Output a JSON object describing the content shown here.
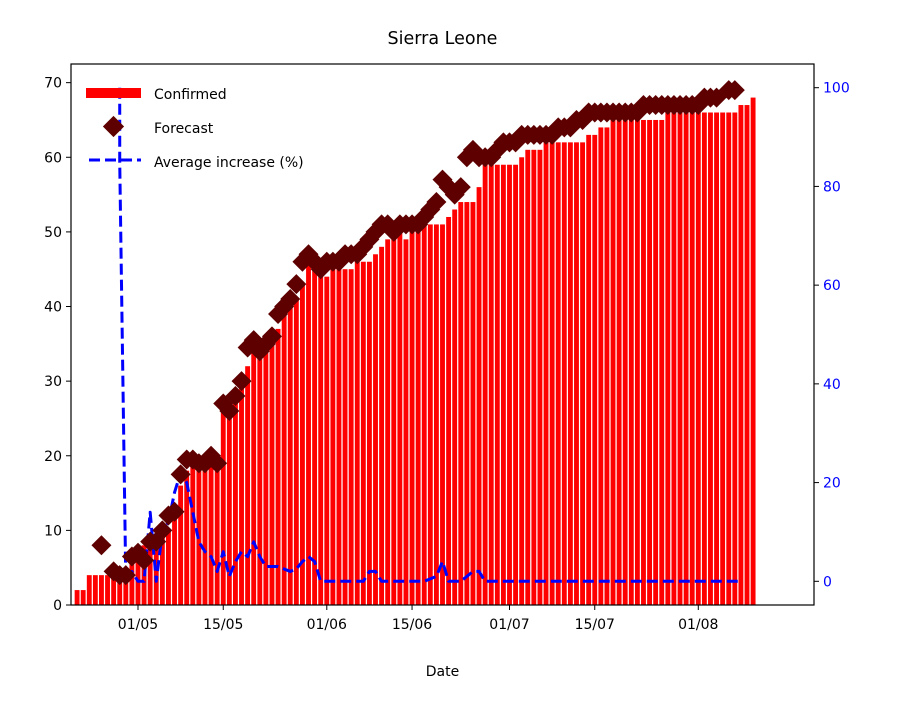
{
  "chart_data": {
    "type": "bar",
    "title": "Sierra Leone",
    "xlabel": "Date",
    "ylabel": "",
    "ylabel_right": "",
    "ylim": [
      0,
      72.5
    ],
    "ylim_right": [
      -4.8,
      104.8
    ],
    "yticks": [
      0,
      10,
      20,
      30,
      40,
      50,
      60,
      70
    ],
    "yticks_right": [
      0,
      20,
      40,
      60,
      80,
      100
    ],
    "xlim": [
      "2020-04-20",
      "2020-08-20"
    ],
    "xticks": [
      {
        "date": "2020-05-01",
        "label": "01/05"
      },
      {
        "date": "2020-05-15",
        "label": "15/05"
      },
      {
        "date": "2020-06-01",
        "label": "01/06"
      },
      {
        "date": "2020-06-15",
        "label": "15/06"
      },
      {
        "date": "2020-07-01",
        "label": "01/07"
      },
      {
        "date": "2020-07-15",
        "label": "15/07"
      },
      {
        "date": "2020-08-01",
        "label": "01/08"
      }
    ],
    "legend_position": "upper-left",
    "grid": false,
    "colors": {
      "confirmed": "#ff0000",
      "forecast": "#5e0000",
      "average": "#0000ff",
      "right_axis": "#0000ff"
    },
    "series": [
      {
        "name": "Confirmed",
        "kind": "bar",
        "axis": "left",
        "points": [
          [
            "2020-04-21",
            2
          ],
          [
            "2020-04-22",
            2
          ],
          [
            "2020-04-23",
            4
          ],
          [
            "2020-04-24",
            4
          ],
          [
            "2020-04-25",
            4
          ],
          [
            "2020-04-26",
            4
          ],
          [
            "2020-04-27",
            4
          ],
          [
            "2020-04-28",
            4
          ],
          [
            "2020-04-29",
            4
          ],
          [
            "2020-04-30",
            6
          ],
          [
            "2020-05-01",
            7
          ],
          [
            "2020-05-02",
            8
          ],
          [
            "2020-05-03",
            8
          ],
          [
            "2020-05-04",
            8
          ],
          [
            "2020-05-05",
            9
          ],
          [
            "2020-05-06",
            10
          ],
          [
            "2020-05-07",
            12
          ],
          [
            "2020-05-08",
            16
          ],
          [
            "2020-05-09",
            18
          ],
          [
            "2020-05-10",
            19
          ],
          [
            "2020-05-11",
            19
          ],
          [
            "2020-05-12",
            19
          ],
          [
            "2020-05-13",
            19
          ],
          [
            "2020-05-14",
            19
          ],
          [
            "2020-05-15",
            26
          ],
          [
            "2020-05-16",
            26
          ],
          [
            "2020-05-17",
            28
          ],
          [
            "2020-05-18",
            29
          ],
          [
            "2020-05-19",
            32
          ],
          [
            "2020-05-20",
            34
          ],
          [
            "2020-05-21",
            34
          ],
          [
            "2020-05-22",
            34
          ],
          [
            "2020-05-23",
            35
          ],
          [
            "2020-05-24",
            37
          ],
          [
            "2020-05-25",
            39
          ],
          [
            "2020-05-26",
            40
          ],
          [
            "2020-05-27",
            41
          ],
          [
            "2020-05-28",
            43
          ],
          [
            "2020-05-29",
            46
          ],
          [
            "2020-05-30",
            46
          ],
          [
            "2020-05-31",
            45
          ],
          [
            "2020-06-01",
            44
          ],
          [
            "2020-06-02",
            45
          ],
          [
            "2020-06-03",
            45
          ],
          [
            "2020-06-04",
            45
          ],
          [
            "2020-06-05",
            45
          ],
          [
            "2020-06-06",
            46
          ],
          [
            "2020-06-07",
            46
          ],
          [
            "2020-06-08",
            46
          ],
          [
            "2020-06-09",
            47
          ],
          [
            "2020-06-10",
            48
          ],
          [
            "2020-06-11",
            49
          ],
          [
            "2020-06-12",
            50
          ],
          [
            "2020-06-13",
            50
          ],
          [
            "2020-06-14",
            49
          ],
          [
            "2020-06-15",
            50
          ],
          [
            "2020-06-16",
            51
          ],
          [
            "2020-06-17",
            51
          ],
          [
            "2020-06-18",
            51
          ],
          [
            "2020-06-19",
            51
          ],
          [
            "2020-06-20",
            51
          ],
          [
            "2020-06-21",
            52
          ],
          [
            "2020-06-22",
            53
          ],
          [
            "2020-06-23",
            54
          ],
          [
            "2020-06-24",
            54
          ],
          [
            "2020-06-25",
            54
          ],
          [
            "2020-06-26",
            56
          ],
          [
            "2020-06-27",
            59
          ],
          [
            "2020-06-28",
            59
          ],
          [
            "2020-06-29",
            59
          ],
          [
            "2020-06-30",
            59
          ],
          [
            "2020-07-01",
            59
          ],
          [
            "2020-07-02",
            59
          ],
          [
            "2020-07-03",
            60
          ],
          [
            "2020-07-04",
            61
          ],
          [
            "2020-07-05",
            61
          ],
          [
            "2020-07-06",
            61
          ],
          [
            "2020-07-07",
            62
          ],
          [
            "2020-07-08",
            62
          ],
          [
            "2020-07-09",
            62
          ],
          [
            "2020-07-10",
            62
          ],
          [
            "2020-07-11",
            62
          ],
          [
            "2020-07-12",
            62
          ],
          [
            "2020-07-13",
            62
          ],
          [
            "2020-07-14",
            63
          ],
          [
            "2020-07-15",
            63
          ],
          [
            "2020-07-16",
            64
          ],
          [
            "2020-07-17",
            64
          ],
          [
            "2020-07-18",
            65
          ],
          [
            "2020-07-19",
            65
          ],
          [
            "2020-07-20",
            65
          ],
          [
            "2020-07-21",
            65
          ],
          [
            "2020-07-22",
            65
          ],
          [
            "2020-07-23",
            65
          ],
          [
            "2020-07-24",
            65
          ],
          [
            "2020-07-25",
            65
          ],
          [
            "2020-07-26",
            65
          ],
          [
            "2020-07-27",
            66
          ],
          [
            "2020-07-28",
            66
          ],
          [
            "2020-07-29",
            66
          ],
          [
            "2020-07-30",
            66
          ],
          [
            "2020-07-31",
            66
          ],
          [
            "2020-08-01",
            66
          ],
          [
            "2020-08-02",
            66
          ],
          [
            "2020-08-03",
            66
          ],
          [
            "2020-08-04",
            66
          ],
          [
            "2020-08-05",
            66
          ],
          [
            "2020-08-06",
            66
          ],
          [
            "2020-08-07",
            66
          ],
          [
            "2020-08-08",
            67
          ],
          [
            "2020-08-09",
            67
          ],
          [
            "2020-08-10",
            68
          ]
        ]
      },
      {
        "name": "Forecast",
        "kind": "scatter",
        "axis": "left",
        "points": [
          [
            "2020-04-25",
            8
          ],
          [
            "2020-04-27",
            4.5
          ],
          [
            "2020-04-28",
            4
          ],
          [
            "2020-04-29",
            4
          ],
          [
            "2020-04-30",
            6.5
          ],
          [
            "2020-05-01",
            7
          ],
          [
            "2020-05-02",
            6
          ],
          [
            "2020-05-03",
            8.5
          ],
          [
            "2020-05-04",
            8.5
          ],
          [
            "2020-05-05",
            10
          ],
          [
            "2020-05-06",
            12
          ],
          [
            "2020-05-07",
            12.5
          ],
          [
            "2020-05-08",
            17.5
          ],
          [
            "2020-05-09",
            19.5
          ],
          [
            "2020-05-10",
            19.5
          ],
          [
            "2020-05-11",
            19
          ],
          [
            "2020-05-12",
            19
          ],
          [
            "2020-05-13",
            20
          ],
          [
            "2020-05-14",
            19
          ],
          [
            "2020-05-15",
            27
          ],
          [
            "2020-05-16",
            26
          ],
          [
            "2020-05-17",
            28
          ],
          [
            "2020-05-18",
            30
          ],
          [
            "2020-05-19",
            34.5
          ],
          [
            "2020-05-20",
            35.5
          ],
          [
            "2020-05-21",
            34
          ],
          [
            "2020-05-22",
            35
          ],
          [
            "2020-05-23",
            36
          ],
          [
            "2020-05-24",
            39
          ],
          [
            "2020-05-25",
            40
          ],
          [
            "2020-05-26",
            41
          ],
          [
            "2020-05-27",
            43
          ],
          [
            "2020-05-28",
            46
          ],
          [
            "2020-05-29",
            47
          ],
          [
            "2020-05-30",
            46
          ],
          [
            "2020-05-31",
            45
          ],
          [
            "2020-06-01",
            46
          ],
          [
            "2020-06-02",
            46
          ],
          [
            "2020-06-03",
            46
          ],
          [
            "2020-06-04",
            47
          ],
          [
            "2020-06-05",
            47
          ],
          [
            "2020-06-06",
            47
          ],
          [
            "2020-06-07",
            48
          ],
          [
            "2020-06-08",
            49
          ],
          [
            "2020-06-09",
            50
          ],
          [
            "2020-06-10",
            51
          ],
          [
            "2020-06-11",
            51
          ],
          [
            "2020-06-12",
            50
          ],
          [
            "2020-06-13",
            51
          ],
          [
            "2020-06-14",
            51
          ],
          [
            "2020-06-15",
            51
          ],
          [
            "2020-06-16",
            51
          ],
          [
            "2020-06-17",
            52
          ],
          [
            "2020-06-18",
            53
          ],
          [
            "2020-06-19",
            54
          ],
          [
            "2020-06-20",
            57
          ],
          [
            "2020-06-21",
            56
          ],
          [
            "2020-06-22",
            55
          ],
          [
            "2020-06-23",
            56
          ],
          [
            "2020-06-24",
            60
          ],
          [
            "2020-06-25",
            61
          ],
          [
            "2020-06-26",
            60
          ],
          [
            "2020-06-27",
            60
          ],
          [
            "2020-06-28",
            60
          ],
          [
            "2020-06-29",
            61
          ],
          [
            "2020-06-30",
            62
          ],
          [
            "2020-07-01",
            62
          ],
          [
            "2020-07-02",
            62
          ],
          [
            "2020-07-03",
            63
          ],
          [
            "2020-07-04",
            63
          ],
          [
            "2020-07-05",
            63
          ],
          [
            "2020-07-06",
            63
          ],
          [
            "2020-07-07",
            63
          ],
          [
            "2020-07-08",
            63
          ],
          [
            "2020-07-09",
            64
          ],
          [
            "2020-07-10",
            64
          ],
          [
            "2020-07-11",
            64
          ],
          [
            "2020-07-12",
            65
          ],
          [
            "2020-07-13",
            65
          ],
          [
            "2020-07-14",
            66
          ],
          [
            "2020-07-15",
            66
          ],
          [
            "2020-07-16",
            66
          ],
          [
            "2020-07-17",
            66
          ],
          [
            "2020-07-18",
            66
          ],
          [
            "2020-07-19",
            66
          ],
          [
            "2020-07-20",
            66
          ],
          [
            "2020-07-21",
            66
          ],
          [
            "2020-07-22",
            66
          ],
          [
            "2020-07-23",
            67
          ],
          [
            "2020-07-24",
            67
          ],
          [
            "2020-07-25",
            67
          ],
          [
            "2020-07-26",
            67
          ],
          [
            "2020-07-27",
            67
          ],
          [
            "2020-07-28",
            67
          ],
          [
            "2020-07-29",
            67
          ],
          [
            "2020-07-30",
            67
          ],
          [
            "2020-07-31",
            67
          ],
          [
            "2020-08-01",
            67
          ],
          [
            "2020-08-02",
            68
          ],
          [
            "2020-08-03",
            68
          ],
          [
            "2020-08-04",
            68
          ],
          [
            "2020-08-06",
            69
          ],
          [
            "2020-08-07",
            69
          ]
        ]
      },
      {
        "name": "Average increase (%)",
        "kind": "line",
        "style": "dashed",
        "axis": "right",
        "points": [
          [
            "2020-04-28",
            100
          ],
          [
            "2020-04-28",
            85
          ],
          [
            "2020-04-29",
            0
          ],
          [
            "2020-04-30",
            2
          ],
          [
            "2020-05-01",
            0
          ],
          [
            "2020-05-02",
            0
          ],
          [
            "2020-05-03",
            14
          ],
          [
            "2020-05-04",
            0
          ],
          [
            "2020-05-05",
            10
          ],
          [
            "2020-05-06",
            12
          ],
          [
            "2020-05-07",
            18
          ],
          [
            "2020-05-08",
            22
          ],
          [
            "2020-05-09",
            20
          ],
          [
            "2020-05-10",
            14
          ],
          [
            "2020-05-11",
            8
          ],
          [
            "2020-05-12",
            6
          ],
          [
            "2020-05-13",
            5
          ],
          [
            "2020-05-14",
            2
          ],
          [
            "2020-05-15",
            6
          ],
          [
            "2020-05-16",
            1
          ],
          [
            "2020-05-17",
            4
          ],
          [
            "2020-05-18",
            6
          ],
          [
            "2020-05-19",
            5
          ],
          [
            "2020-05-20",
            8
          ],
          [
            "2020-05-21",
            5
          ],
          [
            "2020-05-22",
            3
          ],
          [
            "2020-05-23",
            3
          ],
          [
            "2020-05-24",
            3
          ],
          [
            "2020-05-25",
            2.5
          ],
          [
            "2020-05-26",
            2
          ],
          [
            "2020-05-27",
            2.5
          ],
          [
            "2020-05-28",
            4
          ],
          [
            "2020-05-29",
            5
          ],
          [
            "2020-05-30",
            4
          ],
          [
            "2020-05-31",
            0
          ],
          [
            "2020-06-01",
            0
          ],
          [
            "2020-06-05",
            0
          ],
          [
            "2020-06-06",
            0
          ],
          [
            "2020-06-07",
            0
          ],
          [
            "2020-06-08",
            2
          ],
          [
            "2020-06-09",
            2
          ],
          [
            "2020-06-10",
            0
          ],
          [
            "2020-06-15",
            0
          ],
          [
            "2020-06-17",
            0
          ],
          [
            "2020-06-19",
            1
          ],
          [
            "2020-06-20",
            4
          ],
          [
            "2020-06-21",
            0
          ],
          [
            "2020-06-23",
            0
          ],
          [
            "2020-06-25",
            2
          ],
          [
            "2020-06-26",
            2
          ],
          [
            "2020-06-27",
            0
          ],
          [
            "2020-07-01",
            0
          ],
          [
            "2020-07-15",
            0
          ],
          [
            "2020-08-01",
            0
          ],
          [
            "2020-08-08",
            0
          ]
        ]
      }
    ]
  }
}
